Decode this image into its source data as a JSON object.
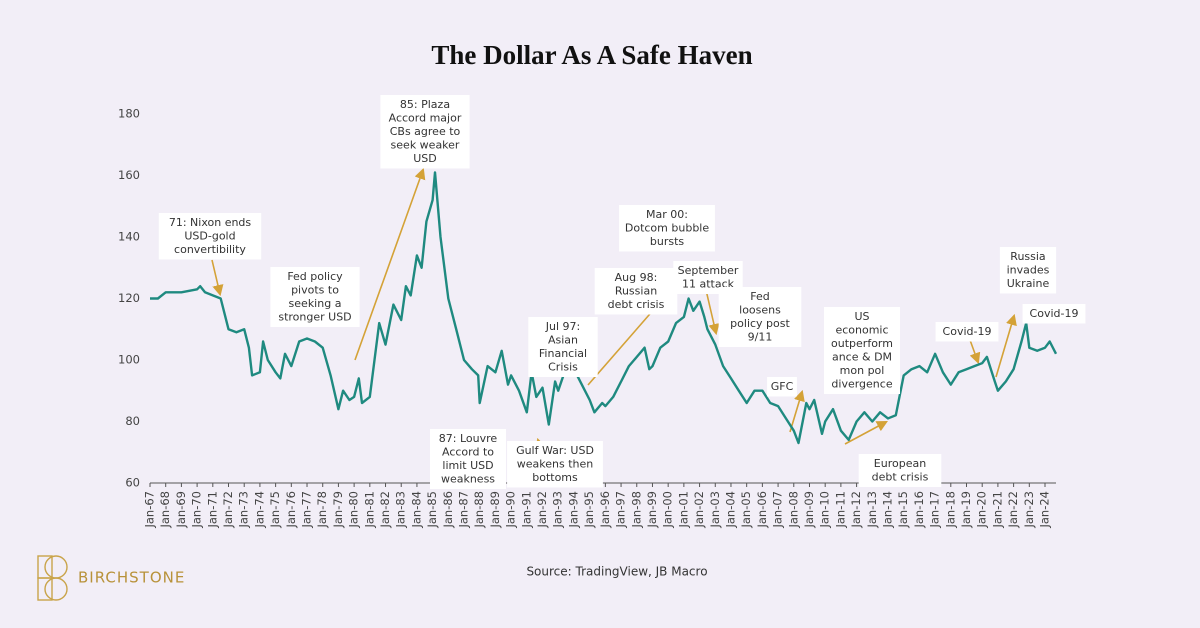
{
  "chart_data": {
    "type": "line",
    "title": "The Dollar As A Safe Haven",
    "source": "Source: TradingView, JB Macro",
    "brand": "BIRCHSTONE",
    "color": "#1f8a80",
    "ylim": [
      60,
      185
    ],
    "yticks": [
      60,
      80,
      100,
      120,
      140,
      160,
      180
    ],
    "xlim": [
      1967,
      2024.7
    ],
    "xticks": [
      {
        "value": 1967,
        "label": "Jan-67"
      },
      {
        "value": 1968,
        "label": "Jan-68"
      },
      {
        "value": 1969,
        "label": "Jan-69"
      },
      {
        "value": 1970,
        "label": "Jan-70"
      },
      {
        "value": 1971,
        "label": "Jan-71"
      },
      {
        "value": 1972,
        "label": "Jan-72"
      },
      {
        "value": 1973,
        "label": "Jan-73"
      },
      {
        "value": 1974,
        "label": "Jan-74"
      },
      {
        "value": 1975,
        "label": "Jan-75"
      },
      {
        "value": 1976,
        "label": "Jan-76"
      },
      {
        "value": 1977,
        "label": "Jan-77"
      },
      {
        "value": 1978,
        "label": "Jan-78"
      },
      {
        "value": 1979,
        "label": "Jan-79"
      },
      {
        "value": 1980,
        "label": "Jan-80"
      },
      {
        "value": 1981,
        "label": "Jan-81"
      },
      {
        "value": 1982,
        "label": "Jan-82"
      },
      {
        "value": 1983,
        "label": "Jan-83"
      },
      {
        "value": 1984,
        "label": "Jan-84"
      },
      {
        "value": 1985,
        "label": "Jan-85"
      },
      {
        "value": 1986,
        "label": "Jan-86"
      },
      {
        "value": 1987,
        "label": "Jan-87"
      },
      {
        "value": 1988,
        "label": "Jan-88"
      },
      {
        "value": 1989,
        "label": "Jan-89"
      },
      {
        "value": 1990,
        "label": "Jan-90"
      },
      {
        "value": 1991,
        "label": "Jan-91"
      },
      {
        "value": 1992,
        "label": "Jan-92"
      },
      {
        "value": 1993,
        "label": "Jan-93"
      },
      {
        "value": 1994,
        "label": "Jan-94"
      },
      {
        "value": 1995,
        "label": "Jan-95"
      },
      {
        "value": 1996,
        "label": "Jan-96"
      },
      {
        "value": 1997,
        "label": "Jan-97"
      },
      {
        "value": 1998,
        "label": "Jan-98"
      },
      {
        "value": 1999,
        "label": "Jan-99"
      },
      {
        "value": 2000,
        "label": "Jan-00"
      },
      {
        "value": 2001,
        "label": "Jan-01"
      },
      {
        "value": 2002,
        "label": "Jan-02"
      },
      {
        "value": 2003,
        "label": "Jan-03"
      },
      {
        "value": 2004,
        "label": "Jan-04"
      },
      {
        "value": 2005,
        "label": "Jan-05"
      },
      {
        "value": 2006,
        "label": "Jan-06"
      },
      {
        "value": 2007,
        "label": "Jan-07"
      },
      {
        "value": 2008,
        "label": "Jan-08"
      },
      {
        "value": 2009,
        "label": "Jan-09"
      },
      {
        "value": 2010,
        "label": "Jan-10"
      },
      {
        "value": 2011,
        "label": "Jan-11"
      },
      {
        "value": 2012,
        "label": "Jan-12"
      },
      {
        "value": 2013,
        "label": "Jan-13"
      },
      {
        "value": 2014,
        "label": "Jan-14"
      },
      {
        "value": 2015,
        "label": "Jan-15"
      },
      {
        "value": 2016,
        "label": "Jan-16"
      },
      {
        "value": 2017,
        "label": "Jan-17"
      },
      {
        "value": 2018,
        "label": "Jan-18"
      },
      {
        "value": 2019,
        "label": "Jan-19"
      },
      {
        "value": 2020,
        "label": "Jan-20"
      },
      {
        "value": 2021,
        "label": "Jan-21"
      },
      {
        "value": 2022,
        "label": "Jan-22"
      },
      {
        "value": 2023,
        "label": "Jan-23"
      },
      {
        "value": 2024,
        "label": "Jan-24"
      }
    ],
    "x": [
      1967,
      1967.5,
      1968,
      1968.5,
      1969,
      1969.5,
      1970,
      1970.2,
      1970.5,
      1971,
      1971.5,
      1972,
      1972.5,
      1973,
      1973.3,
      1973.5,
      1974,
      1974.2,
      1974.5,
      1975,
      1975.3,
      1975.6,
      1976,
      1976.5,
      1977,
      1977.5,
      1978,
      1978.5,
      1979,
      1979.3,
      1979.7,
      1980,
      1980.3,
      1980.5,
      1981,
      1981.3,
      1981.6,
      1982,
      1982.5,
      1983,
      1983.3,
      1983.6,
      1984,
      1984.3,
      1984.6,
      1985,
      1985.15,
      1985.5,
      1986,
      1986.5,
      1987,
      1987.5,
      1987.9,
      1988,
      1988.5,
      1989,
      1989.4,
      1989.8,
      1990,
      1990.5,
      1991,
      1991.3,
      1991.6,
      1992,
      1992.4,
      1992.8,
      1993,
      1993.4,
      1993.8,
      1994,
      1994.5,
      1995,
      1995.3,
      1995.8,
      1996,
      1996.5,
      1997,
      1997.5,
      1998,
      1998.5,
      1998.8,
      1999,
      1999.5,
      2000,
      2000.5,
      2001,
      2001.3,
      2001.6,
      2002,
      2002.3,
      2002.5,
      2003,
      2003.5,
      2004,
      2004.5,
      2005,
      2005.5,
      2006,
      2006.5,
      2007,
      2007.5,
      2008,
      2008.3,
      2008.8,
      2009,
      2009.3,
      2009.8,
      2010,
      2010.5,
      2011,
      2011.5,
      2012,
      2012.5,
      2013,
      2013.5,
      2014,
      2014.5,
      2015,
      2015.5,
      2016,
      2016.5,
      2017,
      2017.5,
      2018,
      2018.5,
      2019,
      2019.5,
      2020,
      2020.3,
      2020.8,
      2021,
      2021.5,
      2022,
      2022.5,
      2022.8,
      2023,
      2023.5,
      2024,
      2024.3,
      2024.7
    ],
    "values": [
      120,
      120,
      122,
      122,
      122,
      122.5,
      123,
      124,
      122,
      121,
      120,
      110,
      109,
      110,
      104,
      95,
      96,
      106,
      100,
      96,
      94,
      102,
      98,
      106,
      107,
      106,
      104,
      95,
      84,
      90,
      87,
      88,
      94,
      86,
      88,
      100,
      112,
      105,
      118,
      113,
      124,
      121,
      134,
      130,
      145,
      152,
      161,
      140,
      120,
      110,
      100,
      97,
      95,
      86,
      98,
      96,
      103,
      92,
      95,
      90,
      83,
      96,
      88,
      91,
      79,
      93,
      90,
      96,
      95,
      97,
      92,
      87,
      83,
      86,
      85,
      88,
      93,
      98,
      101,
      104,
      97,
      98,
      104,
      106,
      112,
      114,
      120,
      116,
      119,
      114,
      110,
      105,
      98,
      94,
      90,
      86,
      90,
      90,
      86,
      85,
      81,
      77,
      73,
      86,
      84,
      87,
      76,
      80,
      84,
      77,
      74,
      80,
      83,
      80,
      83,
      81,
      82,
      95,
      97,
      98,
      96,
      102,
      96,
      92,
      96,
      97,
      98,
      99,
      101,
      93,
      90,
      93,
      97,
      106,
      112,
      104,
      103,
      104,
      106,
      102
    ],
    "annotations": [
      [
        "71: Nixon ends",
        "USD-gold",
        "convertibility"
      ],
      [
        "Fed policy",
        "pivots to",
        "seeking a",
        "stronger USD"
      ],
      [
        "85: Plaza",
        "Accord major",
        "CBs agree to",
        "seek weaker",
        "USD"
      ],
      [
        "87: Louvre",
        "Accord to",
        "limit USD",
        "weakness"
      ],
      [
        "Gulf War: USD",
        "weakens then",
        "bottoms"
      ],
      [
        "Jul 97:",
        "Asian",
        "Financial",
        "Crisis"
      ],
      [
        "Aug 98:",
        "Russian",
        "debt crisis"
      ],
      [
        "Mar 00:",
        "Dotcom bubble",
        "bursts"
      ],
      [
        "September",
        "11 attack"
      ],
      [
        "Fed",
        "loosens",
        "policy post",
        "9/11"
      ],
      [
        "GFC"
      ],
      [
        "US",
        "economic",
        "outperform",
        "ance & DM",
        "mon pol",
        "divergence"
      ],
      [
        "European",
        "debt crisis"
      ],
      [
        "Covid-19"
      ],
      [
        "Russia",
        "invades",
        "Ukraine"
      ],
      [
        "Covid-19"
      ]
    ]
  }
}
